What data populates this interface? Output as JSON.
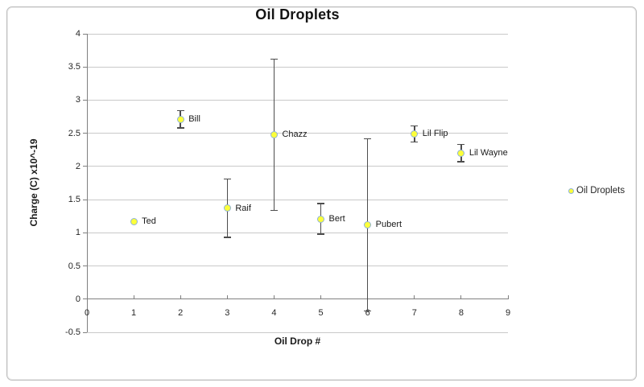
{
  "title": "Oil Droplets",
  "legend": {
    "label": "Oil Droplets"
  },
  "colors": {
    "marker_fill": "#FCFF3A",
    "marker_stroke": "#8FB2D6",
    "error_bar": "#4D4D4D",
    "gridline": "#C9C9C9",
    "axis": "#808080",
    "tick_text": "#262626",
    "title_text": "#141414"
  },
  "chart_data": {
    "type": "scatter",
    "title": "Oil Droplets",
    "xlabel": "Oil Drop #",
    "ylabel": "Charge (C) x10^-19",
    "series_name": "Oil Droplets",
    "xlim": [
      0,
      9
    ],
    "ylim": [
      -0.5,
      4
    ],
    "x_ticks": [
      0,
      1,
      2,
      3,
      4,
      5,
      6,
      7,
      8,
      9
    ],
    "y_ticks": [
      {
        "v": 4,
        "label": "4"
      },
      {
        "v": 3.5,
        "label": "3.5"
      },
      {
        "v": 3,
        "label": "3"
      },
      {
        "v": 2.5,
        "label": "2.5"
      },
      {
        "v": 2,
        "label": "2"
      },
      {
        "v": 1.5,
        "label": "1.5"
      },
      {
        "v": 1,
        "label": "1"
      },
      {
        "v": 0.5,
        "label": "0.5"
      },
      {
        "v": 0,
        "label": "0"
      },
      {
        "v": -0.5,
        "label": "-0.5"
      }
    ],
    "grid": true,
    "legend_position": "right",
    "points": [
      {
        "label": "Ted",
        "x": 1,
        "y": 1.17,
        "err": 0
      },
      {
        "label": "Bill",
        "x": 2,
        "y": 2.71,
        "err": 0.13
      },
      {
        "label": "Raif",
        "x": 3,
        "y": 1.37,
        "err": 0.44
      },
      {
        "label": "Chazz",
        "x": 4,
        "y": 2.48,
        "err": 1.14
      },
      {
        "label": "Bert",
        "x": 5,
        "y": 1.21,
        "err": 0.23
      },
      {
        "label": "Pubert",
        "x": 6,
        "y": 1.12,
        "err": 1.3
      },
      {
        "label": "Lil Flip",
        "x": 7,
        "y": 2.49,
        "err": 0.12
      },
      {
        "label": "Lil Wayne",
        "x": 8,
        "y": 2.2,
        "err": 0.13
      }
    ]
  }
}
